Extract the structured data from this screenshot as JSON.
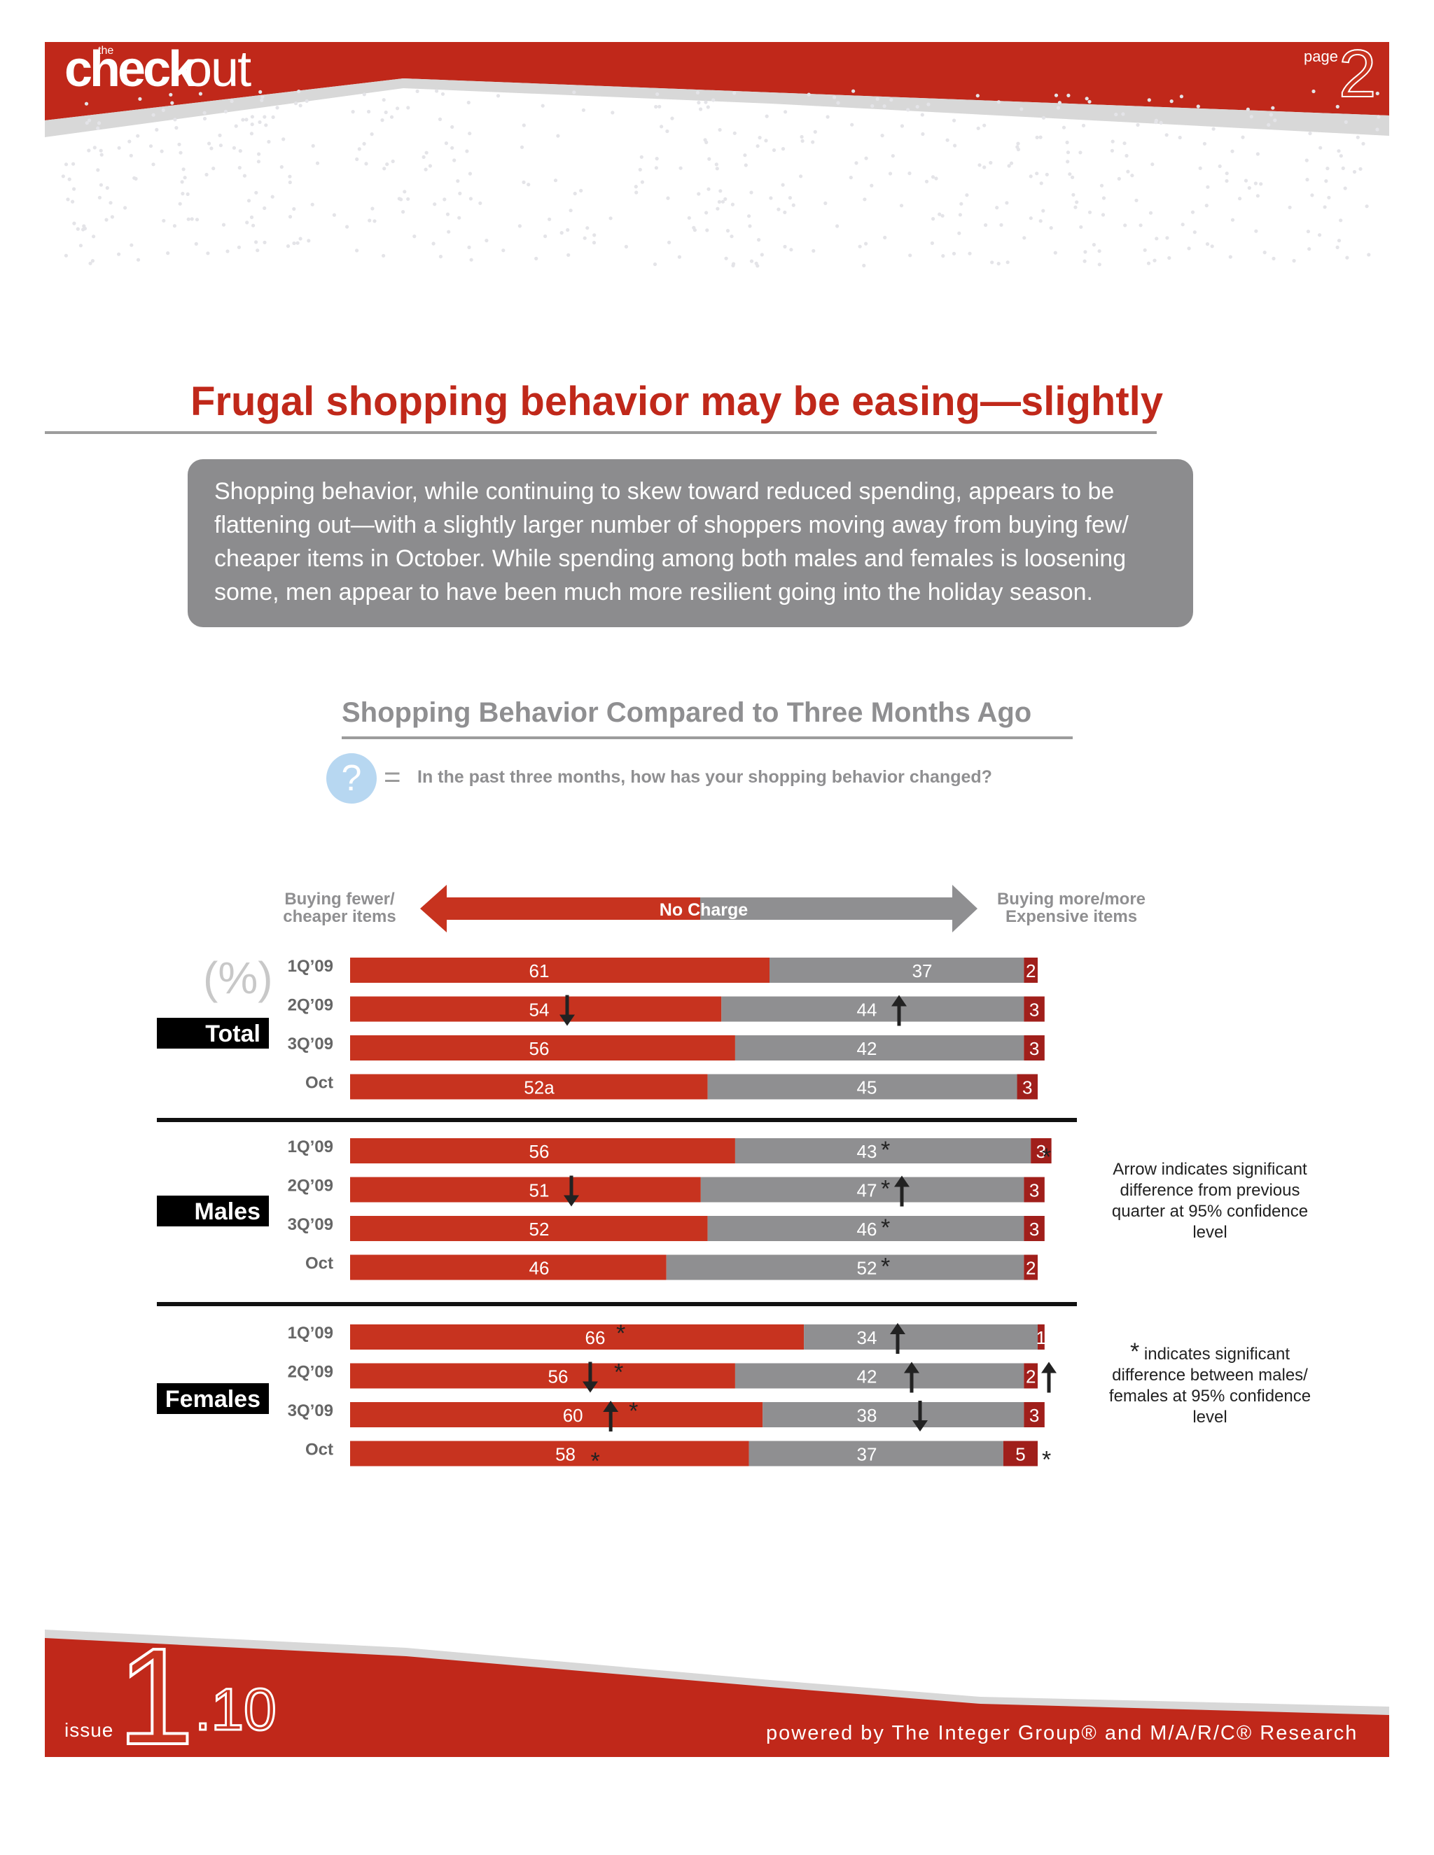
{
  "header": {
    "logo_the": "the",
    "logo_check": "check",
    "logo_out": "out",
    "page_label": "page",
    "page_number": "2",
    "accent_color": "#c7331f"
  },
  "title": "Frugal shopping behavior may be easing—slightly",
  "summary": "Shopping behavior, while continuing to skew toward reduced spending, appears to be flattening out—with a slightly larger number of shoppers moving  away from buying few/ cheaper items in October. While spending among both males and females is loosening some, men appear to have been much more resilient going into the holiday season.",
  "question": {
    "icon": "question-icon",
    "mark": "?",
    "equals": "=",
    "text": "In the past three months, how has your shopping behavior changed?"
  },
  "notes": {
    "arrow": "Arrow indicates significant difference from previous quarter at 95% confidence level",
    "asterisk_mark": "*",
    "asterisk": "indicates significant difference between males/ females at 95% confidence level"
  },
  "footer": {
    "issue_label": "issue",
    "issue_major": "1",
    "issue_minor": ".10",
    "powered_by": "powered by The Integer Group® and M/A/R/C® Research"
  },
  "chart_data": {
    "type": "bar",
    "orientation": "horizontal",
    "stacked": true,
    "title": "Shopping Behavior Compared to Three Months Ago",
    "unit_label": "(%)",
    "column_headers": {
      "left": "Buying fewer/ cheaper items",
      "middle": "No Charge",
      "right": "Buying more/more Expensive items"
    },
    "colors": {
      "fewer": "#c7331f",
      "no_change": "#8f8f91",
      "more": "#a01f1b"
    },
    "groups": [
      {
        "name": "Total",
        "rows": [
          {
            "label": "1Q’09",
            "fewer": 61,
            "no_change": 37,
            "more": 2
          },
          {
            "label": "2Q’09",
            "fewer": 54,
            "no_change": 44,
            "more": 3,
            "fewer_arrow": "down",
            "no_change_arrow": "up"
          },
          {
            "label": "3Q’09",
            "fewer": 56,
            "no_change": 42,
            "more": 3
          },
          {
            "label": "Oct",
            "fewer": 52,
            "fewer_label": "52a",
            "no_change": 45,
            "more": 3
          }
        ]
      },
      {
        "name": "Males",
        "rows": [
          {
            "label": "1Q’09",
            "fewer": 56,
            "no_change": 43,
            "more": 3,
            "no_change_star": true,
            "row_star": true
          },
          {
            "label": "2Q’09",
            "fewer": 51,
            "no_change": 47,
            "more": 3,
            "fewer_arrow": "down",
            "no_change_star": true,
            "no_change_arrow": "up"
          },
          {
            "label": "3Q’09",
            "fewer": 52,
            "no_change": 46,
            "more": 3,
            "no_change_star": true
          },
          {
            "label": "Oct",
            "fewer": 46,
            "no_change": 52,
            "more": 2,
            "no_change_star": true
          }
        ]
      },
      {
        "name": "Females",
        "rows": [
          {
            "label": "1Q’09",
            "fewer": 66,
            "no_change": 34,
            "more": 1,
            "fewer_star": true,
            "no_change_arrow": "up"
          },
          {
            "label": "2Q’09",
            "fewer": 56,
            "no_change": 42,
            "more": 2,
            "fewer_arrow": "down",
            "fewer_star": true,
            "no_change_arrow": "up",
            "more_arrow": "up"
          },
          {
            "label": "3Q’09",
            "fewer": 60,
            "no_change": 38,
            "more": 3,
            "fewer_arrow": "up",
            "fewer_star": true,
            "no_change_arrow": "down"
          },
          {
            "label": "Oct",
            "fewer": 58,
            "no_change": 37,
            "more": 5,
            "fewer_star": true,
            "row_star": true
          }
        ]
      }
    ]
  }
}
